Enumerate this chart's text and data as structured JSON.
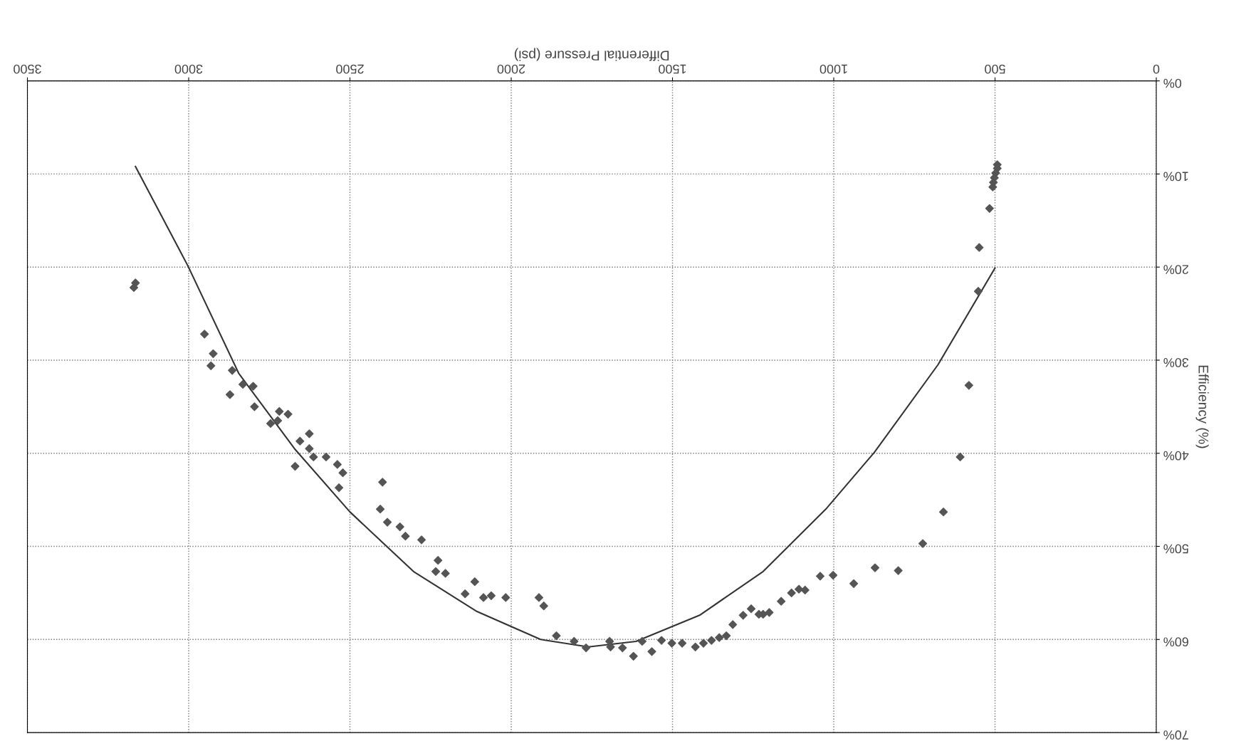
{
  "chart_data": {
    "type": "scatter",
    "xlabel": "Differential Pressure (psi)",
    "ylabel": "Efficiency (%)",
    "xlim": [
      3500,
      0
    ],
    "ylim": [
      70,
      0
    ],
    "xticks": [
      0,
      500,
      1000,
      1500,
      2000,
      2500,
      3000,
      3500
    ],
    "yticks": [
      {
        "value": 0,
        "label": "0%"
      },
      {
        "value": 10,
        "label": "10%"
      },
      {
        "value": 20,
        "label": "20%"
      },
      {
        "value": 30,
        "label": "30%"
      },
      {
        "value": 40,
        "label": "40%"
      },
      {
        "value": 50,
        "label": "50%"
      },
      {
        "value": 60,
        "label": "60%"
      },
      {
        "value": 70,
        "label": "70%"
      }
    ],
    "grid": true,
    "legend": false,
    "series": [
      {
        "color": "#555555",
        "marker": "diamond",
        "x": [
          493,
          493,
          498,
          502,
          505,
          507,
          517,
          549,
          552,
          581,
          608,
          660,
          724,
          800,
          872,
          938,
          1002,
          1042,
          1089,
          1108,
          1131,
          1163,
          1200,
          1219,
          1232,
          1256,
          1281,
          1313,
          1333,
          1355,
          1379,
          1404,
          1429,
          1470,
          1502,
          1534,
          1564,
          1594,
          1621,
          1655,
          1695,
          1692,
          1768,
          1805,
          1860,
          1899,
          1914,
          2017,
          2062,
          2086,
          2113,
          2143,
          2204,
          2234,
          2227,
          2278,
          2328,
          2345,
          2384,
          2406,
          2399,
          2534,
          2522,
          2539,
          2574,
          2613,
          2626,
          2670,
          2626,
          2655,
          2692,
          2719,
          2724,
          2746,
          2796,
          2800,
          2832,
          2872,
          2865,
          2931,
          2924,
          2951,
          3170,
          3165
        ],
        "values": [
          9.0,
          9.4,
          9.9,
          10.4,
          10.9,
          11.4,
          13.7,
          17.9,
          22.6,
          32.7,
          40.4,
          46.3,
          49.7,
          52.6,
          52.3,
          54.0,
          53.1,
          53.2,
          54.7,
          54.6,
          55.0,
          55.9,
          57.1,
          57.3,
          57.3,
          56.7,
          57.4,
          58.4,
          59.6,
          59.8,
          60.1,
          60.4,
          60.8,
          60.4,
          60.4,
          60.1,
          61.3,
          60.2,
          61.8,
          60.9,
          60.2,
          60.8,
          60.9,
          60.2,
          59.6,
          56.4,
          55.5,
          55.5,
          55.3,
          55.5,
          53.8,
          55.1,
          52.9,
          52.7,
          51.5,
          49.3,
          48.9,
          47.9,
          47.4,
          46.0,
          43.1,
          43.7,
          42.1,
          41.2,
          40.4,
          40.4,
          39.5,
          41.4,
          37.9,
          38.7,
          35.8,
          35.5,
          36.5,
          36.8,
          35.0,
          32.8,
          32.6,
          33.7,
          31.1,
          30.6,
          29.3,
          27.2,
          22.2,
          21.7
        ]
      },
      {
        "type": "line",
        "color": "#333333",
        "marker": "none",
        "line_style": "solid",
        "x": [
          500,
          677,
          874,
          1022,
          1219,
          1416,
          1613,
          1761,
          1909,
          2106,
          2303,
          2500,
          2672,
          2845,
          3002,
          3165
        ],
        "values": [
          20.1,
          30.5,
          39.9,
          45.9,
          52.7,
          57.4,
          60.2,
          60.8,
          60.0,
          57.0,
          52.7,
          46.3,
          39.5,
          31.4,
          19.9,
          9.2
        ]
      }
    ]
  }
}
